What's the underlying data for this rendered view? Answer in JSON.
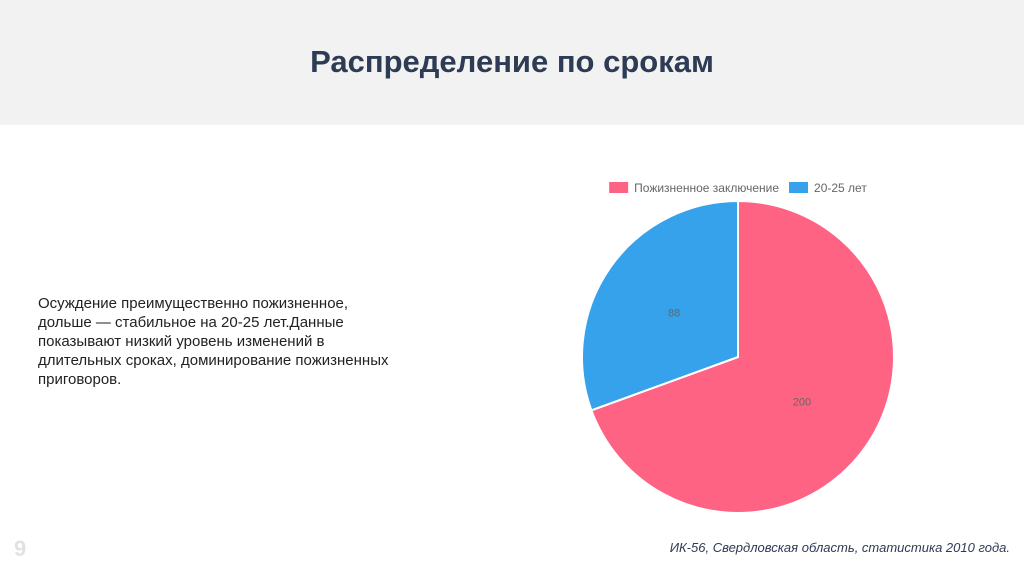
{
  "slide": {
    "title": "Распределение по срокам",
    "description": "Осуждение преимущественно пожизненное, дольше — стабильное на 20-25 лет.Данные показывают низкий уровень изменений в длительных сроках, доминирование пожизненных приговоров.",
    "page_number": "9",
    "footnote": "ИК-56, Свердловская область, статистика 2010 года."
  },
  "colors": {
    "series": [
      "#ff6384",
      "#36a2eb"
    ],
    "header_bg": "#f2f2f2",
    "title": "#2d3b55"
  },
  "chart_data": {
    "type": "pie",
    "categories": [
      "Пожизненное заключение",
      "20-25 лет"
    ],
    "values": [
      200,
      88
    ],
    "legend_position": "top",
    "data_labels": true
  }
}
